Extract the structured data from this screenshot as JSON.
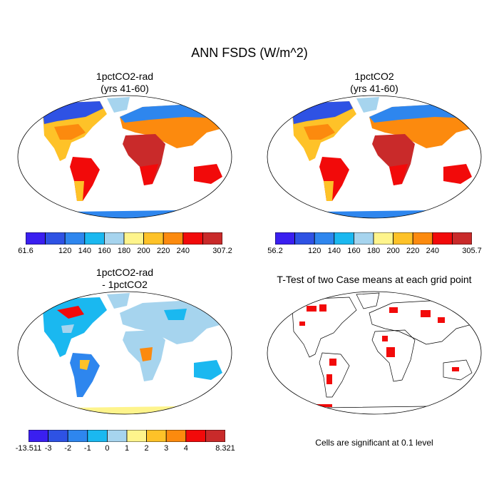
{
  "figure": {
    "title": "ANN FSDS (W/m^2)",
    "note": "Cells are significant at 0.1 level"
  },
  "panels": [
    {
      "id": "p1",
      "title_line1": "1pctCO2-rad",
      "title_line2": "(yrs 41-60)",
      "type": "field"
    },
    {
      "id": "p2",
      "title_line1": "1pctCO2",
      "title_line2": "(yrs 41-60)",
      "type": "field"
    },
    {
      "id": "p3",
      "title_line1": "1pctCO2-rad",
      "title_line2": "- 1pctCO2",
      "type": "difference"
    },
    {
      "id": "p4",
      "title_line1": "T-Test of two Case means at each grid point",
      "title_line2": "",
      "type": "ttest"
    }
  ],
  "colorbars": [
    {
      "id": "cb1",
      "colors": [
        "#3a1ff0",
        "#2e52e4",
        "#2e86ee",
        "#1ab8f0",
        "#a6d4ee",
        "#fef48c",
        "#fec228",
        "#fc8a0e",
        "#f20a0a",
        "#c92a2a"
      ],
      "labels": [
        "61.6",
        "120",
        "140",
        "160",
        "180",
        "200",
        "220",
        "240",
        "307.2"
      ]
    },
    {
      "id": "cb2",
      "colors": [
        "#3a1ff0",
        "#2e52e4",
        "#2e86ee",
        "#1ab8f0",
        "#a6d4ee",
        "#fef48c",
        "#fec228",
        "#fc8a0e",
        "#f20a0a",
        "#c92a2a"
      ],
      "labels": [
        "56.2",
        "120",
        "140",
        "160",
        "180",
        "200",
        "220",
        "240",
        "305.7"
      ]
    },
    {
      "id": "cb3",
      "colors": [
        "#3a1ff0",
        "#2e52e4",
        "#2e86ee",
        "#1ab8f0",
        "#a6d4ee",
        "#fef48c",
        "#fec228",
        "#fc8a0e",
        "#f20a0a",
        "#c92a2a"
      ],
      "labels": [
        "-13.511",
        "-3",
        "-2",
        "-1",
        "0",
        "1",
        "2",
        "3",
        "4",
        "8.321"
      ]
    }
  ]
}
